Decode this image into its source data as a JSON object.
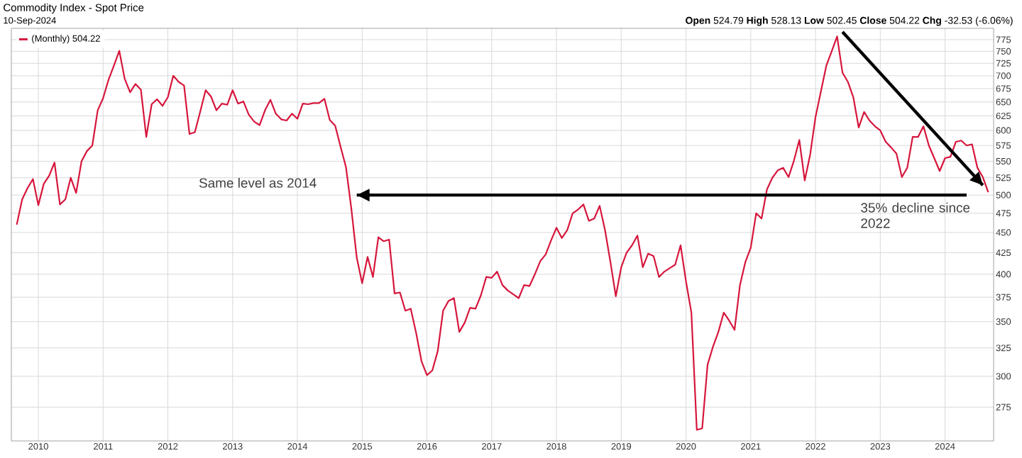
{
  "chart_data": {
    "type": "line",
    "title": "Commodity Index - Spot Price",
    "subtitle": "10-Sep-2024",
    "annotations": [
      "**Open** 524.79 **High** 528.13 **Low** 502.45 **Close** 504.22 **Chg** -32.53 (-6.06%)",
      "Same level as 2014",
      "35% decline since 2022"
    ],
    "series": [
      {
        "name": "(Monthly) 504.22",
        "color": "#d6163c",
        "x": [
          "2009-09",
          "2009-10",
          "2009-11",
          "2009-12",
          "2010-01",
          "2010-02",
          "2010-03",
          "2010-04",
          "2010-05",
          "2010-06",
          "2010-07",
          "2010-08",
          "2010-09",
          "2010-10",
          "2010-11",
          "2010-12",
          "2011-01",
          "2011-02",
          "2011-03",
          "2011-04",
          "2011-05",
          "2011-06",
          "2011-07",
          "2011-08",
          "2011-09",
          "2011-10",
          "2011-11",
          "2011-12",
          "2012-01",
          "2012-02",
          "2012-03",
          "2012-04",
          "2012-05",
          "2012-06",
          "2012-07",
          "2012-08",
          "2012-09",
          "2012-10",
          "2012-11",
          "2012-12",
          "2013-01",
          "2013-02",
          "2013-03",
          "2013-04",
          "2013-05",
          "2013-06",
          "2013-07",
          "2013-08",
          "2013-09",
          "2013-10",
          "2013-11",
          "2013-12",
          "2014-01",
          "2014-02",
          "2014-03",
          "2014-04",
          "2014-05",
          "2014-06",
          "2014-07",
          "2014-08",
          "2014-09",
          "2014-10",
          "2014-11",
          "2014-12",
          "2015-01",
          "2015-02",
          "2015-03",
          "2015-04",
          "2015-05",
          "2015-06",
          "2015-07",
          "2015-08",
          "2015-09",
          "2015-10",
          "2015-11",
          "2015-12",
          "2016-01",
          "2016-02",
          "2016-03",
          "2016-04",
          "2016-05",
          "2016-06",
          "2016-07",
          "2016-08",
          "2016-09",
          "2016-10",
          "2016-11",
          "2016-12",
          "2017-01",
          "2017-02",
          "2017-03",
          "2017-04",
          "2017-05",
          "2017-06",
          "2017-07",
          "2017-08",
          "2017-09",
          "2017-10",
          "2017-11",
          "2017-12",
          "2018-01",
          "2018-02",
          "2018-03",
          "2018-04",
          "2018-05",
          "2018-06",
          "2018-07",
          "2018-08",
          "2018-09",
          "2018-10",
          "2018-11",
          "2018-12",
          "2019-01",
          "2019-02",
          "2019-03",
          "2019-04",
          "2019-05",
          "2019-06",
          "2019-07",
          "2019-08",
          "2019-09",
          "2019-10",
          "2019-11",
          "2019-12",
          "2020-01",
          "2020-02",
          "2020-03",
          "2020-04",
          "2020-05",
          "2020-06",
          "2020-07",
          "2020-08",
          "2020-09",
          "2020-10",
          "2020-11",
          "2020-12",
          "2021-01",
          "2021-02",
          "2021-03",
          "2021-04",
          "2021-05",
          "2021-06",
          "2021-07",
          "2021-08",
          "2021-09",
          "2021-10",
          "2021-11",
          "2021-12",
          "2022-01",
          "2022-02",
          "2022-03",
          "2022-04",
          "2022-05",
          "2022-06",
          "2022-07",
          "2022-08",
          "2022-09",
          "2022-10",
          "2022-11",
          "2022-12",
          "2023-01",
          "2023-02",
          "2023-03",
          "2023-04",
          "2023-05",
          "2023-06",
          "2023-07",
          "2023-08",
          "2023-09",
          "2023-10",
          "2023-11",
          "2023-12",
          "2024-01",
          "2024-02",
          "2024-03",
          "2024-04",
          "2024-05",
          "2024-06",
          "2024-07",
          "2024-08",
          "2024-09"
        ],
        "values": [
          460,
          494,
          510,
          523,
          486,
          516,
          528,
          548,
          487,
          494,
          525,
          503,
          550,
          566,
          575,
          635,
          657,
          692,
          720,
          751,
          694,
          668,
          684,
          673,
          589,
          646,
          655,
          643,
          659,
          700,
          688,
          681,
          594,
          597,
          633,
          672,
          660,
          635,
          647,
          645,
          672,
          647,
          651,
          627,
          615,
          609,
          635,
          654,
          629,
          619,
          617,
          629,
          620,
          647,
          646,
          648,
          648,
          656,
          618,
          608,
          573,
          541,
          481,
          419,
          390,
          420,
          397,
          444,
          439,
          441,
          379,
          380,
          361,
          363,
          339,
          313,
          301,
          305,
          322,
          361,
          371,
          374,
          340,
          349,
          364,
          363,
          377,
          397,
          396,
          403,
          388,
          382,
          378,
          374,
          388,
          387,
          400,
          415,
          423,
          440,
          456,
          443,
          453,
          475,
          480,
          487,
          465,
          468,
          485,
          453,
          414,
          376,
          408,
          425,
          434,
          446,
          408,
          424,
          421,
          397,
          403,
          407,
          411,
          434,
          392,
          359,
          258,
          259,
          310,
          326,
          340,
          359,
          351,
          342,
          388,
          414,
          431,
          475,
          468,
          508,
          525,
          536,
          540,
          526,
          551,
          584,
          521,
          560,
          623,
          670,
          720,
          750,
          782,
          706,
          688,
          659,
          605,
          632,
          617,
          607,
          600,
          581,
          572,
          562,
          526,
          540,
          589,
          589,
          607,
          575,
          555,
          535,
          555,
          557,
          581,
          583,
          575,
          577,
          540,
          526,
          504
        ]
      },
      {
        "type": "line",
        "color": "#000000",
        "x": [
          "2024-05",
          "2014-12"
        ],
        "values": [
          500,
          500
        ]
      },
      {
        "type": "line",
        "color": "#000000",
        "x": [
          "2022-06",
          "2024-08"
        ],
        "values": [
          792,
          514
        ]
      }
    ],
    "xlim": [
      "2009-08",
      "2024-10"
    ],
    "xticks": [
      "2010",
      "2011",
      "2012",
      "2013",
      "2014",
      "2015",
      "2016",
      "2017",
      "2018",
      "2019",
      "2020",
      "2021",
      "2022",
      "2023",
      "2024"
    ],
    "ylim": [
      250,
      800
    ],
    "yticks": [
      275,
      300,
      325,
      350,
      375,
      400,
      425,
      450,
      475,
      500,
      525,
      550,
      575,
      600,
      625,
      650,
      675,
      700,
      725,
      750,
      775
    ],
    "log": true,
    "grid": true,
    "legend": "top left"
  }
}
